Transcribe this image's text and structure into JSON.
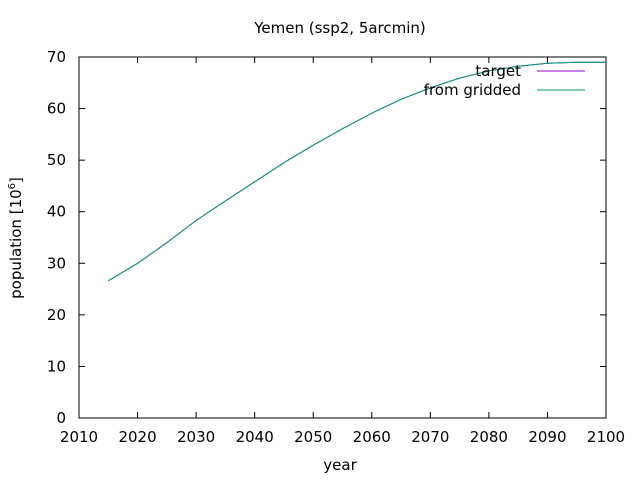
{
  "chart_data": {
    "type": "line",
    "title": "Yemen (ssp2, 5arcmin)",
    "xlabel": "year",
    "ylabel_main": "population [10",
    "ylabel_exp": "6",
    "ylabel_close": "]",
    "xlim": [
      2010,
      2100
    ],
    "ylim": [
      0,
      70
    ],
    "x_ticks": [
      2010,
      2020,
      2030,
      2040,
      2050,
      2060,
      2070,
      2080,
      2090,
      2100
    ],
    "y_ticks": [
      0,
      10,
      20,
      30,
      40,
      50,
      60,
      70
    ],
    "grid": false,
    "legend_position": "top-right",
    "series": [
      {
        "name": "target",
        "color": "#9400d3",
        "x": [
          2015,
          2020,
          2025,
          2030,
          2035,
          2040,
          2045,
          2050,
          2055,
          2060,
          2065,
          2070,
          2075,
          2080,
          2085,
          2090,
          2095,
          2100
        ],
        "y": [
          26.6,
          30.0,
          34.0,
          38.3,
          42.1,
          45.8,
          49.5,
          52.9,
          56.1,
          59.1,
          61.8,
          64.0,
          65.9,
          67.3,
          68.2,
          68.8,
          69.0,
          69.0
        ]
      },
      {
        "name": "from gridded",
        "color": "#009e73",
        "x": [
          2015,
          2020,
          2025,
          2030,
          2035,
          2040,
          2045,
          2050,
          2055,
          2060,
          2065,
          2070,
          2075,
          2080,
          2085,
          2090,
          2095,
          2100
        ],
        "y": [
          26.6,
          30.0,
          34.0,
          38.3,
          42.1,
          45.8,
          49.5,
          52.9,
          56.1,
          59.1,
          61.8,
          64.0,
          65.9,
          67.3,
          68.2,
          68.8,
          69.0,
          69.0
        ]
      }
    ]
  }
}
